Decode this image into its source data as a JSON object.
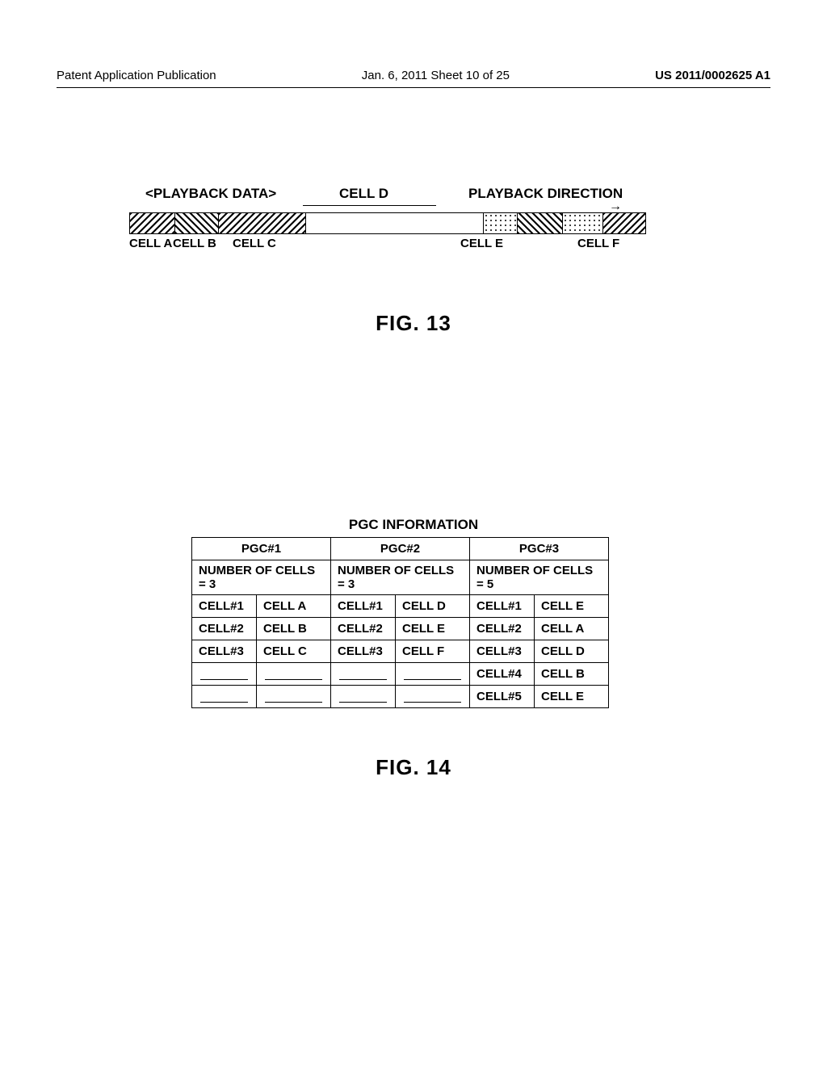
{
  "header": {
    "left": "Patent Application Publication",
    "mid": "Jan. 6, 2011  Sheet 10 of 25",
    "right": "US 2011/0002625 A1"
  },
  "fig13": {
    "playback_data": "<PLAYBACK DATA>",
    "cell_d_label": "CELL D",
    "playback_direction": "PLAYBACK DIRECTION",
    "cells": {
      "a": "CELL A",
      "b": "CELL B",
      "c": "CELL C",
      "e": "CELL E",
      "f": "CELL F"
    },
    "arrow": "→",
    "caption": "FIG. 13"
  },
  "fig14": {
    "title": "PGC INFORMATION",
    "pgc1": {
      "header": "PGC#1",
      "num": "NUMBER OF CELLS = 3",
      "rows": [
        [
          "CELL#1",
          "CELL A"
        ],
        [
          "CELL#2",
          "CELL B"
        ],
        [
          "CELL#3",
          "CELL C"
        ]
      ]
    },
    "pgc2": {
      "header": "PGC#2",
      "num": "NUMBER OF CELLS = 3",
      "rows": [
        [
          "CELL#1",
          "CELL D"
        ],
        [
          "CELL#2",
          "CELL E"
        ],
        [
          "CELL#3",
          "CELL F"
        ]
      ]
    },
    "pgc3": {
      "header": "PGC#3",
      "num": "NUMBER OF CELLS = 5",
      "rows": [
        [
          "CELL#1",
          "CELL E"
        ],
        [
          "CELL#2",
          "CELL A"
        ],
        [
          "CELL#3",
          "CELL D"
        ],
        [
          "CELL#4",
          "CELL B"
        ],
        [
          "CELL#5",
          "CELL E"
        ]
      ]
    },
    "caption": "FIG. 14"
  }
}
